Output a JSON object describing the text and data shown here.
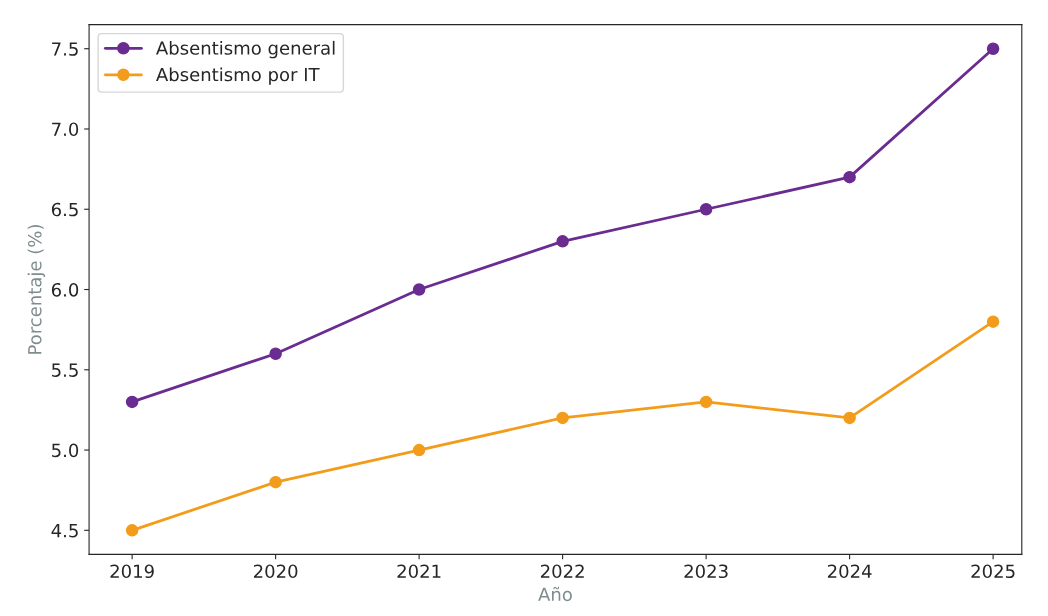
{
  "chart_data": {
    "type": "line",
    "x": [
      2019,
      2020,
      2021,
      2022,
      2023,
      2024,
      2025
    ],
    "series": [
      {
        "name": "Absentismo general",
        "color": "#6a2c91",
        "values": [
          5.3,
          5.6,
          6.0,
          6.3,
          6.5,
          6.7,
          7.5
        ]
      },
      {
        "name": "Absentismo por IT",
        "color": "#f39c1b",
        "values": [
          4.5,
          4.8,
          5.0,
          5.2,
          5.3,
          5.2,
          5.8
        ]
      }
    ],
    "xlabel": "Año",
    "ylabel": "Porcentaje (%)",
    "xlim": [
      2018.7,
      2025.2
    ],
    "xticks": [
      2019,
      2020,
      2021,
      2022,
      2023,
      2024,
      2025
    ],
    "ylim": [
      4.35,
      7.65
    ],
    "yticks": [
      {
        "value": 4.5,
        "label": "4.5"
      },
      {
        "value": 5.0,
        "label": "5.0"
      },
      {
        "value": 5.5,
        "label": "5.5"
      },
      {
        "value": 6.0,
        "label": "6.0"
      },
      {
        "value": 6.5,
        "label": "6.5"
      },
      {
        "value": 7.0,
        "label": "7.0"
      },
      {
        "value": 7.5,
        "label": "7.5"
      }
    ],
    "marker": "circle",
    "line_style": "solid",
    "legend": "top left",
    "grid": false
  }
}
